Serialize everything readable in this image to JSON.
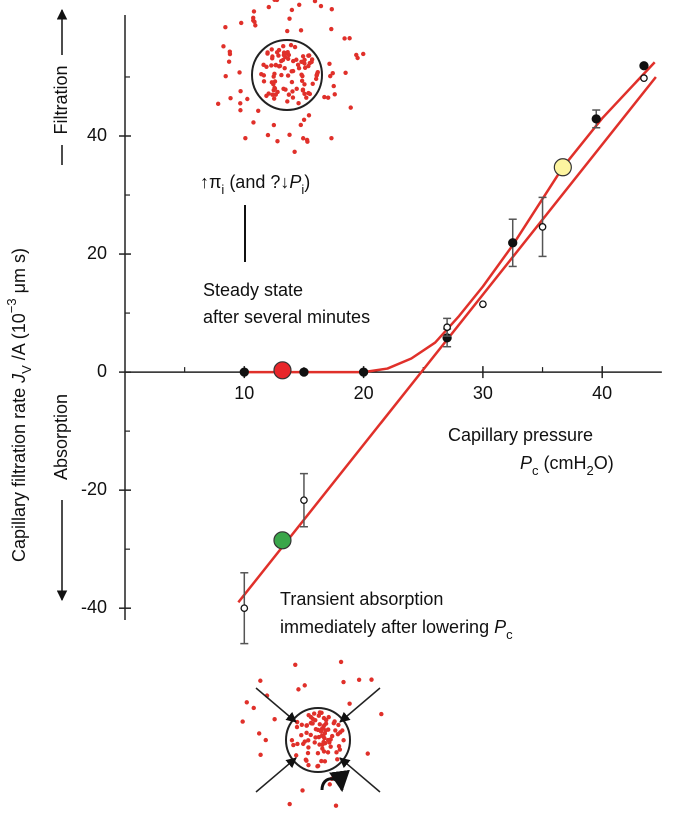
{
  "chart_data": {
    "type": "scatter",
    "ylabel": [
      "Capillary filtration rate ",
      "J",
      "V",
      " /A (10",
      "−3",
      " μm s)"
    ],
    "xlabel": [
      "Capillary pressure",
      "P",
      "c",
      " (cmH",
      "2",
      "O)"
    ],
    "filtration": "Filtration",
    "absorption": "Absorption",
    "annotation_top": [
      "↑π",
      "i",
      " (and ?↓",
      "P",
      "i",
      ")"
    ],
    "steady": [
      "Steady state",
      "after several minutes"
    ],
    "transient": [
      "Transient absorption",
      "immediately after lowering ",
      "P",
      "c"
    ],
    "xlim": [
      0,
      45
    ],
    "ylim": [
      -42,
      60.5
    ],
    "xticks": [
      10,
      20,
      30,
      40
    ],
    "yticks": [
      -40,
      -20,
      0,
      20,
      40
    ],
    "xticks_minor": [
      5,
      15,
      25,
      35
    ],
    "yticks_minor": [
      -30,
      -10,
      10,
      30,
      50
    ],
    "grid": false,
    "curves": [
      {
        "color": "#e0302a",
        "x": [
          10,
          20,
          22,
          24,
          26,
          28,
          30,
          32.5,
          36.7,
          40,
          44.4
        ],
        "values": [
          0,
          0,
          0.6,
          2.3,
          5,
          9.5,
          14.5,
          21.5,
          34.7,
          43,
          52.5
        ]
      },
      {
        "color": "#e0302a",
        "x": [
          9.5,
          44.5
        ],
        "values": [
          -39,
          50
        ]
      }
    ],
    "series": [
      {
        "marker": "filled",
        "color": "#111111",
        "x": [
          10,
          15,
          20,
          27,
          32.5,
          39.5,
          43.5
        ],
        "values": [
          0,
          0,
          0,
          5.8,
          21.9,
          42.9,
          51.9
        ],
        "errors": [
          null,
          null,
          null,
          1.5,
          4,
          1.5,
          null
        ]
      },
      {
        "marker": "open",
        "color": "#111111",
        "x": [
          10,
          15,
          27,
          30,
          35,
          43.5
        ],
        "values": [
          -40,
          -21.7,
          7.6,
          11.5,
          24.6,
          49.8
        ],
        "errors": [
          6,
          4.5,
          1.5,
          null,
          5,
          null
        ]
      }
    ],
    "highlights": {
      "x": [
        13.2,
        36.7,
        13.2
      ],
      "values": [
        0.3,
        34.7,
        -28.5
      ],
      "colors": [
        "#e8262a",
        "#fdf5a0",
        "#3aa64a"
      ]
    }
  }
}
